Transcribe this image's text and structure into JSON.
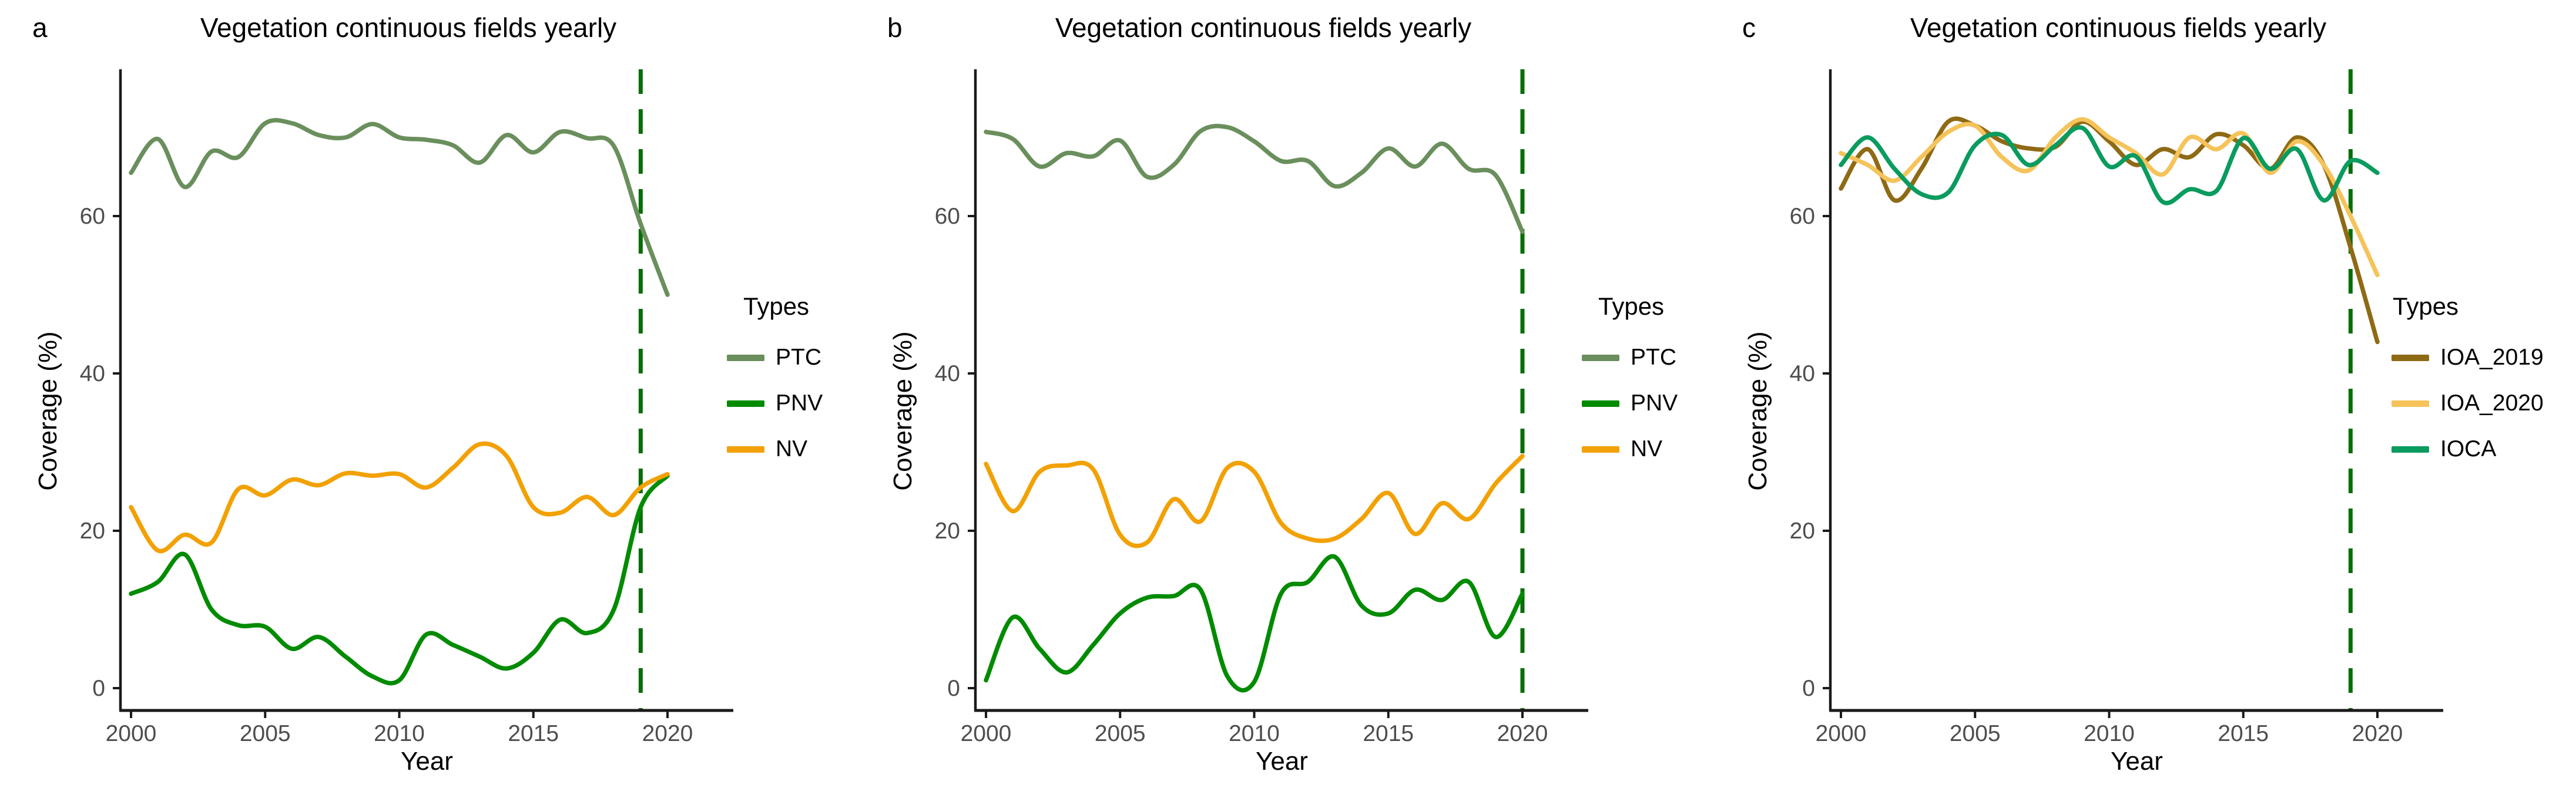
{
  "style": {
    "background": "#ffffff",
    "axis_color": "#1a1a1a",
    "tick_label_color": "#4d4d4d",
    "text_color": "#000000"
  },
  "chart_data": [
    {
      "type": "line",
      "tag": "a",
      "title": "Vegetation continuous fields yearly",
      "xlabel": "Year",
      "ylabel": "Coverage (%)",
      "legend_title": "Types",
      "legend_position": "right",
      "grid": false,
      "xlim": [
        1999.6,
        2021.9
      ],
      "ylim": [
        0,
        75
      ],
      "x_ticks": [
        2000,
        2005,
        2010,
        2015,
        2020
      ],
      "y_ticks": [
        0,
        20,
        40,
        60
      ],
      "vline": {
        "x": 2019,
        "style": "dashed",
        "color": "#066e06"
      },
      "x": [
        2000,
        2001,
        2002,
        2003,
        2004,
        2005,
        2006,
        2007,
        2008,
        2009,
        2010,
        2011,
        2012,
        2013,
        2014,
        2015,
        2016,
        2017,
        2018,
        2019,
        2020
      ],
      "series": [
        {
          "name": "PTC",
          "color": "#6a8f5d",
          "values": [
            65.5,
            69.8,
            63.7,
            68.2,
            67.5,
            71.8,
            71.8,
            70.3,
            70,
            71.7,
            70,
            69.7,
            69,
            66.8,
            70.3,
            68.1,
            70.7,
            69.9,
            68.9,
            59,
            50
          ]
        },
        {
          "name": "PNV",
          "color": "#008b00",
          "values": [
            12,
            13.5,
            17,
            10,
            8,
            7.8,
            5,
            6.5,
            4,
            1.5,
            1,
            6.8,
            5.5,
            4,
            2.5,
            4.5,
            8.7,
            7,
            10,
            23,
            27
          ]
        },
        {
          "name": "NV",
          "color": "#f2a104",
          "values": [
            23,
            17.5,
            19.5,
            18.5,
            25.3,
            24.5,
            26.5,
            25.8,
            27.3,
            27,
            27.2,
            25.5,
            28,
            31,
            29.5,
            23,
            22.3,
            24.3,
            22,
            25.5,
            27.2
          ]
        }
      ]
    },
    {
      "type": "line",
      "tag": "b",
      "title": "Vegetation continuous fields yearly",
      "xlabel": "Year",
      "ylabel": "Coverage (%)",
      "legend_title": "Types",
      "legend_position": "right",
      "grid": false,
      "xlim": [
        1999.6,
        2021.9
      ],
      "ylim": [
        0,
        75
      ],
      "x_ticks": [
        2000,
        2005,
        2010,
        2015,
        2020
      ],
      "y_ticks": [
        0,
        20,
        40,
        60
      ],
      "vline": {
        "x": 2020,
        "style": "dashed",
        "color": "#066e06"
      },
      "x": [
        2000,
        2001,
        2002,
        2003,
        2004,
        2005,
        2006,
        2007,
        2008,
        2009,
        2010,
        2011,
        2012,
        2013,
        2014,
        2015,
        2016,
        2017,
        2018,
        2019,
        2020
      ],
      "series": [
        {
          "name": "PTC",
          "color": "#6a8f5d",
          "values": [
            70.7,
            69.8,
            66.3,
            68,
            67.6,
            69.6,
            65,
            66.5,
            70.8,
            71.3,
            69.5,
            67,
            67,
            63.8,
            65.5,
            68.6,
            66.3,
            69.2,
            66,
            65.2,
            58
          ]
        },
        {
          "name": "PNV",
          "color": "#008b00",
          "values": [
            1,
            9,
            5,
            2,
            5.5,
            9.5,
            11.5,
            11.7,
            12.5,
            1.5,
            0.8,
            12,
            13.5,
            16.7,
            10.5,
            9.5,
            12.5,
            11.2,
            13.5,
            6.5,
            12
          ]
        },
        {
          "name": "NV",
          "color": "#f2a104",
          "values": [
            28.5,
            22.5,
            27.5,
            28.3,
            27.8,
            19.5,
            18.5,
            24,
            21.2,
            28,
            27.5,
            21,
            19,
            19,
            21.5,
            24.8,
            19.6,
            23.5,
            21.5,
            26,
            29.5
          ]
        }
      ]
    },
    {
      "type": "line",
      "tag": "c",
      "title": "Vegetation continuous fields yearly",
      "xlabel": "Year",
      "ylabel": "Coverage (%)",
      "legend_title": "Types",
      "legend_position": "right",
      "grid": false,
      "xlim": [
        1999.6,
        2021.9
      ],
      "ylim": [
        0,
        75
      ],
      "x_ticks": [
        2000,
        2005,
        2010,
        2015,
        2020
      ],
      "y_ticks": [
        0,
        20,
        40,
        60
      ],
      "vline": {
        "x": 2019,
        "style": "dashed",
        "color": "#066e06"
      },
      "x": [
        2000,
        2001,
        2002,
        2003,
        2004,
        2005,
        2006,
        2007,
        2008,
        2009,
        2010,
        2011,
        2012,
        2013,
        2014,
        2015,
        2016,
        2017,
        2018,
        2019,
        2020
      ],
      "series": [
        {
          "name": "IOA_2019",
          "color": "#8f6a15",
          "values": [
            63.5,
            68.5,
            62,
            66,
            72,
            71.5,
            69.5,
            68.6,
            68.8,
            72,
            69.5,
            66.5,
            68.5,
            67.5,
            70.4,
            69,
            66,
            70,
            66.5,
            56,
            44
          ]
        },
        {
          "name": "IOA_2020",
          "color": "#f5c35a",
          "values": [
            68,
            66.5,
            64.5,
            67.5,
            70.7,
            71.5,
            67.5,
            65.8,
            70,
            72.3,
            70,
            68,
            65.3,
            70,
            68.5,
            70.5,
            65.5,
            69.5,
            66.5,
            60,
            52.5
          ]
        },
        {
          "name": "IOCA",
          "color": "#0a9b5f",
          "values": [
            66.5,
            70,
            66,
            62.8,
            63,
            69,
            70.3,
            66.5,
            69,
            71.2,
            66.3,
            67.6,
            61.8,
            63.4,
            63.2,
            69.9,
            66,
            68.5,
            62,
            67,
            65.5
          ]
        }
      ]
    }
  ]
}
